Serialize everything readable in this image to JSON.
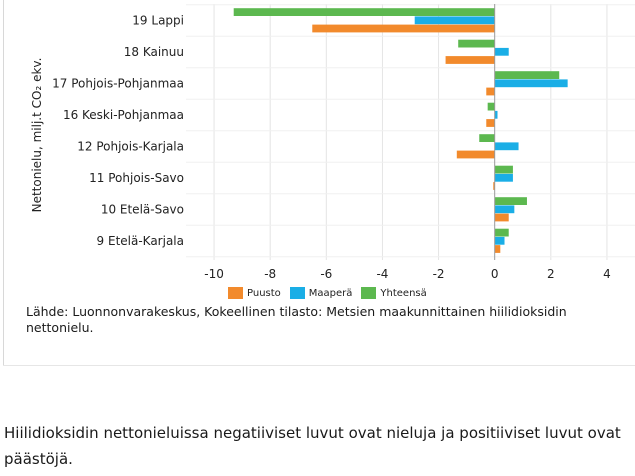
{
  "chart_data": {
    "type": "bar",
    "orientation": "horizontal",
    "categories": [
      "19 Lappi",
      "18 Kainuu",
      "17 Pohjois-Pohjanmaa",
      "16 Keski-Pohjanmaa",
      "12 Pohjois-Karjala",
      "11 Pohjois-Savo",
      "10 Etelä-Savo",
      "9 Etelä-Karjala"
    ],
    "series": [
      {
        "name": "Puusto",
        "color": "#f28a2c",
        "values": [
          -6.5,
          -1.75,
          -0.3,
          -0.3,
          -1.35,
          -0.05,
          0.5,
          0.2
        ]
      },
      {
        "name": "Maaperä",
        "color": "#1aaee6",
        "values": [
          -2.85,
          0.5,
          2.6,
          0.1,
          0.85,
          0.65,
          0.7,
          0.35
        ]
      },
      {
        "name": "Yhteensä",
        "color": "#5cb84f",
        "values": [
          -9.3,
          -1.3,
          2.3,
          -0.25,
          -0.55,
          0.65,
          1.15,
          0.5
        ]
      }
    ],
    "series_draw_order": [
      "Yhteensä",
      "Maaperä",
      "Puusto"
    ],
    "ylabel": "Nettonielu, milj.t CO₂ ekv.",
    "xlabel": "",
    "xlim": [
      -11,
      5
    ],
    "xticks": [
      -10,
      -8,
      -6,
      -4,
      -2,
      0,
      2,
      4
    ],
    "xtick_labels": [
      "-10",
      "-8",
      "-6",
      "-4",
      "-2",
      "0",
      "2",
      "4"
    ],
    "grid": true,
    "legend_position": "bottom-center"
  },
  "source_text": "Lähde: Luonnonvarakeskus, Kokeellinen tilasto: Metsien maakunnittainen hiilidioksidin nettonielu.",
  "caption_text": "Hiilidioksidin nettonieluissa negatiiviset luvut ovat nieluja ja positiiviset luvut ovat päästöjä."
}
